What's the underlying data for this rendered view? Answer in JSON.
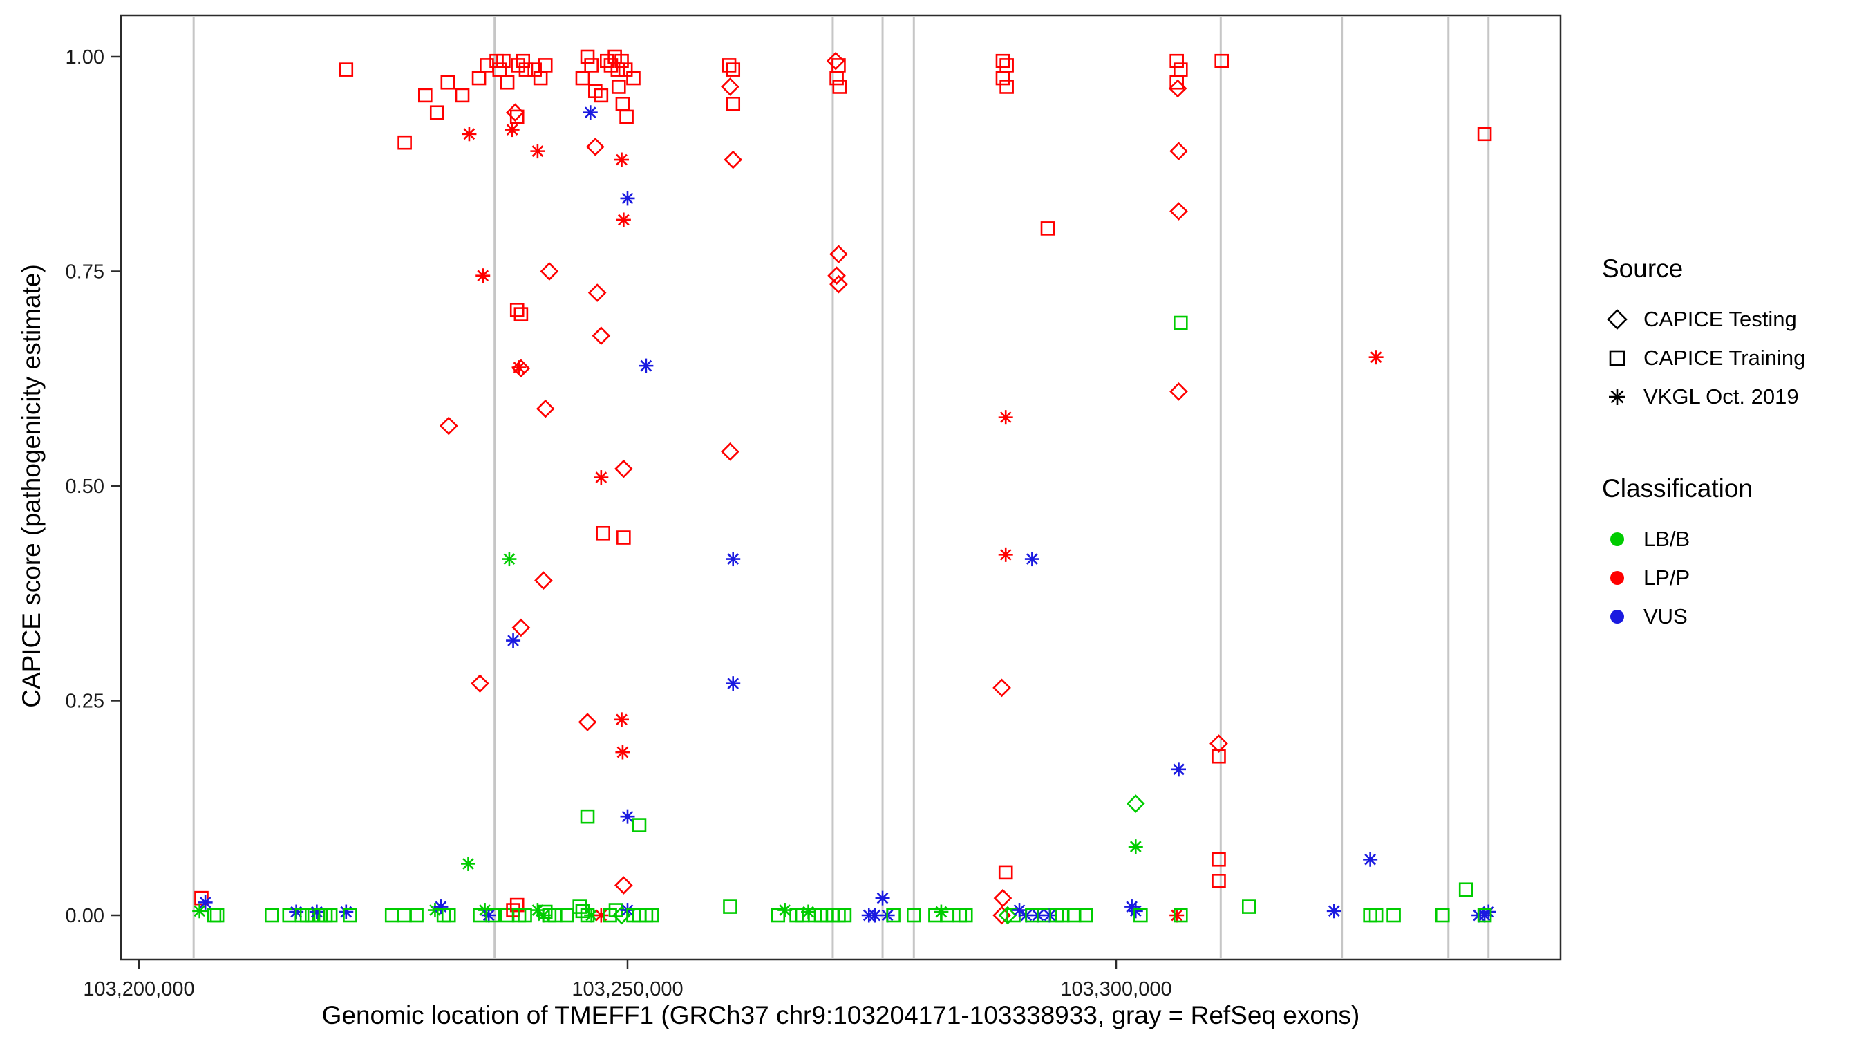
{
  "figure": {
    "background": "#FFFFFF",
    "panel_border_color": "#2B2B2B",
    "exon_line_color": "#C6C6C6"
  },
  "legend": {
    "source": {
      "title": "Source",
      "items": [
        {
          "label": "CAPICE Testing",
          "marker": "diamond"
        },
        {
          "label": "CAPICE Training",
          "marker": "square"
        },
        {
          "label": "VKGL Oct. 2019",
          "marker": "asterisk"
        }
      ]
    },
    "classification": {
      "title": "Classification",
      "items": [
        {
          "label": "LB/B",
          "color": "#00CC00"
        },
        {
          "label": "LP/P",
          "color": "#FF0000"
        },
        {
          "label": "VUS",
          "color": "#1A1AE0"
        }
      ]
    }
  },
  "chart_data": {
    "type": "scatter",
    "title": "",
    "xlabel": "Genomic location of TMEFF1 (GRCh37 chr9:103204171-103338933, gray = RefSeq exons)",
    "ylabel": "CAPICE score (pathogenicity estimate)",
    "xlim": [
      103198000,
      103345500
    ],
    "ylim": [
      0,
      1
    ],
    "grid": false,
    "legend_position": "right",
    "x_ticks": [
      {
        "value": 103200000,
        "label": "103,200,000"
      },
      {
        "value": 103250000,
        "label": "103,250,000"
      },
      {
        "value": 103300000,
        "label": "103,300,000"
      }
    ],
    "y_ticks": [
      {
        "value": 0,
        "label": "0.00"
      },
      {
        "value": 0.25,
        "label": "0.25"
      },
      {
        "value": 0.5,
        "label": "0.50"
      },
      {
        "value": 0.75,
        "label": "0.75"
      },
      {
        "value": 1,
        "label": "1.00"
      }
    ],
    "refseq_exons_x": [
      103205600,
      103236400,
      103271000,
      103276100,
      103279300,
      103310700,
      103323100,
      103334000,
      103338100
    ],
    "point_format": [
      "genomic_position",
      "capice_score",
      "source",
      "classification"
    ],
    "source_markers": {
      "T": "CAPICE Testing (open diamond)",
      "R": "CAPICE Training (open square)",
      "V": "VKGL Oct. 2019 (asterisk)"
    },
    "classification_colors": {
      "LB": "#00CC00",
      "LP": "#FF0000",
      "VUS": "#1A1AE0"
    },
    "points": [
      [
        103221200,
        0.985,
        "R",
        "LP"
      ],
      [
        103227200,
        0.9,
        "R",
        "LP"
      ],
      [
        103229300,
        0.955,
        "R",
        "LP"
      ],
      [
        103230500,
        0.935,
        "R",
        "LP"
      ],
      [
        103231600,
        0.97,
        "R",
        "LP"
      ],
      [
        103233100,
        0.955,
        "R",
        "LP"
      ],
      [
        103233800,
        0.91,
        "V",
        "LP"
      ],
      [
        103234800,
        0.975,
        "R",
        "LP"
      ],
      [
        103235200,
        0.745,
        "V",
        "LP"
      ],
      [
        103235600,
        0.99,
        "R",
        "LP"
      ],
      [
        103236600,
        0.995,
        "R",
        "LP"
      ],
      [
        103236900,
        0.985,
        "R",
        "LP"
      ],
      [
        103237300,
        0.995,
        "R",
        "LP"
      ],
      [
        103237700,
        0.97,
        "R",
        "LP"
      ],
      [
        103238200,
        0.915,
        "V",
        "LP"
      ],
      [
        103238500,
        0.935,
        "T",
        "LP"
      ],
      [
        103238700,
        0.93,
        "R",
        "LP"
      ],
      [
        103238800,
        0.99,
        "R",
        "LP"
      ],
      [
        103239300,
        0.995,
        "R",
        "LP"
      ],
      [
        103239600,
        0.985,
        "R",
        "LP"
      ],
      [
        103240500,
        0.985,
        "R",
        "LP"
      ],
      [
        103240800,
        0.89,
        "V",
        "LP"
      ],
      [
        103241100,
        0.975,
        "R",
        "LP"
      ],
      [
        103241600,
        0.99,
        "R",
        "LP"
      ],
      [
        103242000,
        0.75,
        "T",
        "LP"
      ],
      [
        103241600,
        0.59,
        "T",
        "LP"
      ],
      [
        103238700,
        0.705,
        "R",
        "LP"
      ],
      [
        103239100,
        0.7,
        "R",
        "LP"
      ],
      [
        103238900,
        0.638,
        "V",
        "LP"
      ],
      [
        103239100,
        0.637,
        "T",
        "LP"
      ],
      [
        103234900,
        0.27,
        "T",
        "LP"
      ],
      [
        103237900,
        0.415,
        "V",
        "LB"
      ],
      [
        103238300,
        0.32,
        "V",
        "VUS"
      ],
      [
        103239100,
        0.335,
        "T",
        "LP"
      ],
      [
        103241400,
        0.39,
        "T",
        "LP"
      ],
      [
        103231700,
        0.57,
        "T",
        "LP"
      ],
      [
        103233700,
        0.06,
        "V",
        "LB"
      ],
      [
        103245400,
        0.975,
        "R",
        "LP"
      ],
      [
        103245900,
        1.0,
        "R",
        "LP"
      ],
      [
        103246300,
        0.99,
        "R",
        "LP"
      ],
      [
        103246200,
        0.935,
        "V",
        "VUS"
      ],
      [
        103246700,
        0.96,
        "R",
        "LP"
      ],
      [
        103246700,
        0.895,
        "T",
        "LP"
      ],
      [
        103247300,
        0.955,
        "R",
        "LP"
      ],
      [
        103247900,
        0.995,
        "R",
        "LP"
      ],
      [
        103248300,
        0.99,
        "R",
        "LP"
      ],
      [
        103248700,
        1.0,
        "R",
        "LP"
      ],
      [
        103249000,
        0.985,
        "R",
        "LP"
      ],
      [
        103249400,
        0.995,
        "R",
        "LP"
      ],
      [
        103249800,
        0.985,
        "R",
        "LP"
      ],
      [
        103249100,
        0.965,
        "R",
        "LP"
      ],
      [
        103249500,
        0.945,
        "R",
        "LP"
      ],
      [
        103249900,
        0.93,
        "R",
        "LP"
      ],
      [
        103249400,
        0.88,
        "V",
        "LP"
      ],
      [
        103249600,
        0.81,
        "V",
        "LP"
      ],
      [
        103250000,
        0.835,
        "V",
        "VUS"
      ],
      [
        103246900,
        0.725,
        "T",
        "LP"
      ],
      [
        103247300,
        0.675,
        "T",
        "LP"
      ],
      [
        103247300,
        0.51,
        "V",
        "LP"
      ],
      [
        103249600,
        0.52,
        "T",
        "LP"
      ],
      [
        103247500,
        0.445,
        "R",
        "LP"
      ],
      [
        103249600,
        0.44,
        "R",
        "LP"
      ],
      [
        103251900,
        0.64,
        "V",
        "VUS"
      ],
      [
        103245900,
        0.225,
        "T",
        "LP"
      ],
      [
        103249400,
        0.228,
        "V",
        "LP"
      ],
      [
        103249500,
        0.19,
        "V",
        "LP"
      ],
      [
        103250000,
        0.115,
        "V",
        "VUS"
      ],
      [
        103245900,
        0.115,
        "R",
        "LB"
      ],
      [
        103251200,
        0.105,
        "R",
        "LB"
      ],
      [
        103249600,
        0.035,
        "T",
        "LP"
      ],
      [
        103250600,
        0.975,
        "R",
        "LP"
      ],
      [
        103260400,
        0.99,
        "R",
        "LP"
      ],
      [
        103260800,
        0.985,
        "R",
        "LP"
      ],
      [
        103260500,
        0.965,
        "T",
        "LP"
      ],
      [
        103260800,
        0.945,
        "R",
        "LP"
      ],
      [
        103260800,
        0.88,
        "T",
        "LP"
      ],
      [
        103260500,
        0.54,
        "T",
        "LP"
      ],
      [
        103260800,
        0.415,
        "V",
        "VUS"
      ],
      [
        103260800,
        0.27,
        "V",
        "VUS"
      ],
      [
        103260500,
        0.01,
        "R",
        "LB"
      ],
      [
        103271300,
        0.995,
        "T",
        "LP"
      ],
      [
        103271600,
        0.99,
        "R",
        "LP"
      ],
      [
        103271400,
        0.975,
        "R",
        "LP"
      ],
      [
        103271700,
        0.965,
        "R",
        "LP"
      ],
      [
        103271600,
        0.77,
        "T",
        "LP"
      ],
      [
        103271400,
        0.745,
        "T",
        "LP"
      ],
      [
        103271600,
        0.735,
        "T",
        "LP"
      ],
      [
        103288400,
        0.995,
        "R",
        "LP"
      ],
      [
        103288800,
        0.99,
        "R",
        "LP"
      ],
      [
        103288400,
        0.975,
        "R",
        "LP"
      ],
      [
        103288800,
        0.965,
        "R",
        "LP"
      ],
      [
        103293000,
        0.8,
        "R",
        "LP"
      ],
      [
        103288700,
        0.58,
        "V",
        "LP"
      ],
      [
        103288700,
        0.42,
        "V",
        "LP"
      ],
      [
        103291400,
        0.415,
        "V",
        "VUS"
      ],
      [
        103288300,
        0.265,
        "T",
        "LP"
      ],
      [
        103288700,
        0.05,
        "R",
        "LP"
      ],
      [
        103288400,
        0.02,
        "T",
        "LP"
      ],
      [
        103302000,
        0.13,
        "T",
        "LB"
      ],
      [
        103302000,
        0.08,
        "V",
        "LB"
      ],
      [
        103306200,
        0.995,
        "R",
        "LP"
      ],
      [
        103306600,
        0.985,
        "R",
        "LP"
      ],
      [
        103306200,
        0.97,
        "R",
        "LP"
      ],
      [
        103306300,
        0.963,
        "T",
        "LP"
      ],
      [
        103306400,
        0.89,
        "T",
        "LP"
      ],
      [
        103306400,
        0.82,
        "T",
        "LP"
      ],
      [
        103306600,
        0.69,
        "R",
        "LB"
      ],
      [
        103306400,
        0.61,
        "T",
        "LP"
      ],
      [
        103306400,
        0.17,
        "V",
        "VUS"
      ],
      [
        103310800,
        0.995,
        "R",
        "LP"
      ],
      [
        103310500,
        0.2,
        "T",
        "LP"
      ],
      [
        103310500,
        0.185,
        "R",
        "LP"
      ],
      [
        103310500,
        0.065,
        "R",
        "LP"
      ],
      [
        103310500,
        0.04,
        "R",
        "LP"
      ],
      [
        103326600,
        0.65,
        "V",
        "LP"
      ],
      [
        103326000,
        0.065,
        "V",
        "VUS"
      ],
      [
        103337700,
        0.91,
        "R",
        "LP"
      ],
      [
        103335800,
        0.03,
        "R",
        "LB"
      ],
      [
        103206400,
        0.02,
        "R",
        "LP"
      ],
      [
        103206800,
        0.015,
        "V",
        "VUS"
      ],
      [
        103206200,
        0.005,
        "V",
        "LB"
      ],
      [
        103207700,
        0,
        "R",
        "LB"
      ],
      [
        103208000,
        0,
        "R",
        "LB"
      ],
      [
        103213600,
        0,
        "R",
        "LB"
      ],
      [
        103215400,
        0,
        "R",
        "LB"
      ],
      [
        103216100,
        0.004,
        "V",
        "VUS"
      ],
      [
        103216700,
        0,
        "R",
        "LB"
      ],
      [
        103217200,
        0,
        "R",
        "LB"
      ],
      [
        103217700,
        0,
        "R",
        "LB"
      ],
      [
        103218200,
        0.004,
        "V",
        "VUS"
      ],
      [
        103218600,
        0,
        "R",
        "LB"
      ],
      [
        103219100,
        0,
        "R",
        "LB"
      ],
      [
        103219600,
        0,
        "R",
        "LB"
      ],
      [
        103221200,
        0.004,
        "V",
        "VUS"
      ],
      [
        103221600,
        0,
        "R",
        "LB"
      ],
      [
        103225900,
        0,
        "R",
        "LB"
      ],
      [
        103227200,
        0,
        "R",
        "LB"
      ],
      [
        103228400,
        0,
        "R",
        "LB"
      ],
      [
        103230300,
        0.006,
        "V",
        "LB"
      ],
      [
        103230900,
        0.01,
        "V",
        "VUS"
      ],
      [
        103231200,
        0,
        "R",
        "LB"
      ],
      [
        103231700,
        0,
        "R",
        "LB"
      ],
      [
        103234900,
        0,
        "R",
        "LB"
      ],
      [
        103235400,
        0.006,
        "V",
        "LB"
      ],
      [
        103235800,
        0,
        "V",
        "VUS"
      ],
      [
        103236200,
        0,
        "R",
        "LB"
      ],
      [
        103237700,
        0,
        "R",
        "LB"
      ],
      [
        103238300,
        0.006,
        "R",
        "LP"
      ],
      [
        103238700,
        0.012,
        "R",
        "LP"
      ],
      [
        103238900,
        0,
        "R",
        "LB"
      ],
      [
        103239500,
        0,
        "R",
        "LB"
      ],
      [
        103240800,
        0.006,
        "V",
        "LB"
      ],
      [
        103241400,
        0,
        "V",
        "LB"
      ],
      [
        103241600,
        0.004,
        "R",
        "LB"
      ],
      [
        103242000,
        0,
        "R",
        "LB"
      ],
      [
        103242600,
        0,
        "R",
        "LB"
      ],
      [
        103243800,
        0,
        "R",
        "LB"
      ],
      [
        103245100,
        0.01,
        "R",
        "LB"
      ],
      [
        103245400,
        0.005,
        "R",
        "LB"
      ],
      [
        103245900,
        0,
        "R",
        "LB"
      ],
      [
        103246300,
        0,
        "V",
        "LB"
      ],
      [
        103247300,
        0,
        "V",
        "LP"
      ],
      [
        103248200,
        0,
        "R",
        "LB"
      ],
      [
        103248800,
        0.006,
        "R",
        "LB"
      ],
      [
        103249400,
        0,
        "T",
        "LB"
      ],
      [
        103250000,
        0.006,
        "V",
        "VUS"
      ],
      [
        103250600,
        0,
        "R",
        "LB"
      ],
      [
        103251200,
        0,
        "R",
        "LB"
      ],
      [
        103251900,
        0,
        "R",
        "LB"
      ],
      [
        103252500,
        0,
        "R",
        "LB"
      ],
      [
        103265400,
        0,
        "R",
        "LB"
      ],
      [
        103266100,
        0.006,
        "V",
        "LB"
      ],
      [
        103267300,
        0,
        "R",
        "LB"
      ],
      [
        103267900,
        0,
        "R",
        "LB"
      ],
      [
        103268500,
        0.004,
        "V",
        "LB"
      ],
      [
        103269200,
        0,
        "R",
        "LB"
      ],
      [
        103269800,
        0,
        "R",
        "LB"
      ],
      [
        103270400,
        0,
        "R",
        "LB"
      ],
      [
        103271000,
        0,
        "R",
        "LB"
      ],
      [
        103271600,
        0,
        "R",
        "LB"
      ],
      [
        103272200,
        0,
        "R",
        "LB"
      ],
      [
        103274700,
        0,
        "V",
        "VUS"
      ],
      [
        103275300,
        0,
        "V",
        "VUS"
      ],
      [
        103276100,
        0.02,
        "V",
        "VUS"
      ],
      [
        103276600,
        0,
        "V",
        "VUS"
      ],
      [
        103277200,
        0,
        "R",
        "LB"
      ],
      [
        103279300,
        0,
        "R",
        "LB"
      ],
      [
        103281500,
        0,
        "R",
        "LB"
      ],
      [
        103282100,
        0.004,
        "V",
        "LB"
      ],
      [
        103282700,
        0,
        "R",
        "LB"
      ],
      [
        103284000,
        0,
        "R",
        "LB"
      ],
      [
        103284600,
        0,
        "R",
        "LB"
      ],
      [
        103288300,
        0,
        "T",
        "LP"
      ],
      [
        103288900,
        0,
        "T",
        "LB"
      ],
      [
        103289500,
        0,
        "R",
        "LB"
      ],
      [
        103290100,
        0.006,
        "V",
        "VUS"
      ],
      [
        103290800,
        0,
        "V",
        "VUS"
      ],
      [
        103291400,
        0,
        "R",
        "LB"
      ],
      [
        103292000,
        0,
        "V",
        "VUS"
      ],
      [
        103292600,
        0,
        "R",
        "LB"
      ],
      [
        103293200,
        0,
        "V",
        "VUS"
      ],
      [
        103293900,
        0,
        "R",
        "LB"
      ],
      [
        103294500,
        0,
        "R",
        "LB"
      ],
      [
        103295700,
        0,
        "R",
        "LB"
      ],
      [
        103296900,
        0,
        "R",
        "LB"
      ],
      [
        103301600,
        0.01,
        "V",
        "VUS"
      ],
      [
        103302000,
        0.005,
        "V",
        "VUS"
      ],
      [
        103302500,
        0,
        "R",
        "LB"
      ],
      [
        103306200,
        0,
        "V",
        "LP"
      ],
      [
        103306600,
        0,
        "R",
        "LB"
      ],
      [
        103313600,
        0.01,
        "R",
        "LB"
      ],
      [
        103322300,
        0.005,
        "V",
        "VUS"
      ],
      [
        103326000,
        0,
        "R",
        "LB"
      ],
      [
        103326600,
        0,
        "R",
        "LB"
      ],
      [
        103328400,
        0,
        "R",
        "LB"
      ],
      [
        103333400,
        0,
        "R",
        "LB"
      ],
      [
        103337100,
        0,
        "V",
        "VUS"
      ],
      [
        103337700,
        0,
        "V",
        "VUS"
      ],
      [
        103338100,
        0.004,
        "V",
        "VUS"
      ],
      [
        103337700,
        0,
        "R",
        "LB"
      ]
    ]
  }
}
